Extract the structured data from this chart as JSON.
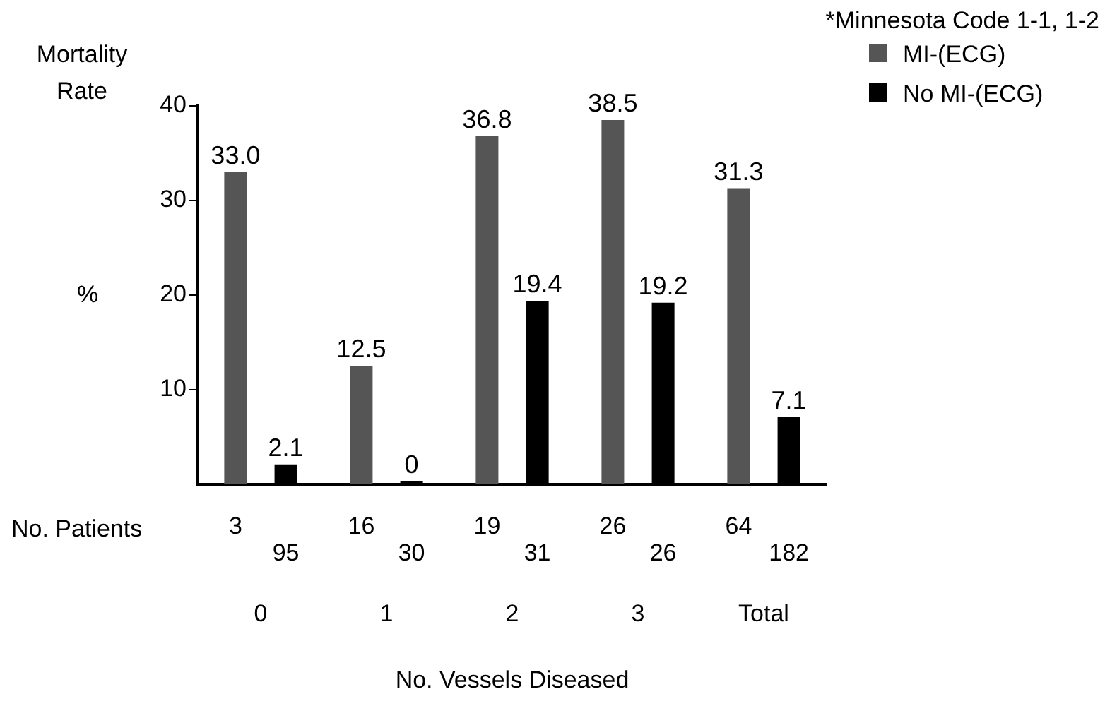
{
  "chart_data": {
    "type": "bar",
    "ylabel": "Mortality Rate",
    "xlabel": "No. Vessels Diseased",
    "categories": [
      "0",
      "1",
      "2",
      "3",
      "Total"
    ],
    "series": [
      {
        "name": "MI-(ECG)",
        "color": "#555555",
        "values": [
          33.0,
          12.5,
          36.8,
          38.5,
          31.3
        ],
        "value_labels": [
          "33.0",
          "12.5",
          "36.8",
          "38.5",
          "31.3"
        ]
      },
      {
        "name": "No MI-(ECG)",
        "color": "#000000",
        "values": [
          2.1,
          0,
          19.4,
          19.2,
          7.1
        ],
        "value_labels": [
          "2.1",
          "0",
          "19.4",
          "19.2",
          "7.1"
        ]
      }
    ],
    "ylim": [
      0,
      40
    ],
    "yticks": [
      10,
      20,
      30,
      40
    ],
    "grid": false,
    "legend": "top right",
    "annotations": [
      "*Minnesota Code 1-1, 1-2",
      "%",
      "No. Patients",
      "3",
      "95",
      "16",
      "30",
      "19",
      "31",
      "26",
      "26",
      "64",
      "182"
    ]
  }
}
